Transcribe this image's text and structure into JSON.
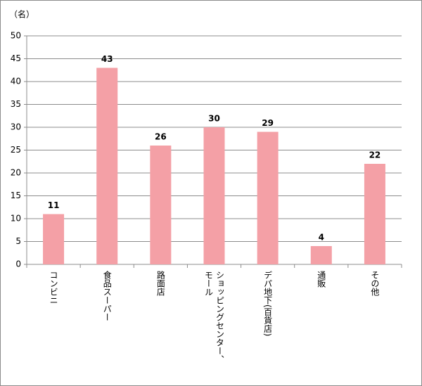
{
  "chart_data": {
    "type": "bar",
    "ylabel": "（名）",
    "categories": [
      "コンビニ",
      "食品スーパー",
      "路面店",
      "ショッピングセンター、モール",
      "デパ地下(百貨店)",
      "通販",
      "その他"
    ],
    "values": [
      11,
      43,
      26,
      30,
      29,
      4,
      22
    ],
    "color": "#f4a0a6",
    "ylim": [
      0,
      50
    ],
    "yticks": [
      0,
      5,
      10,
      15,
      20,
      25,
      30,
      35,
      40,
      45,
      50
    ],
    "grid": true
  }
}
